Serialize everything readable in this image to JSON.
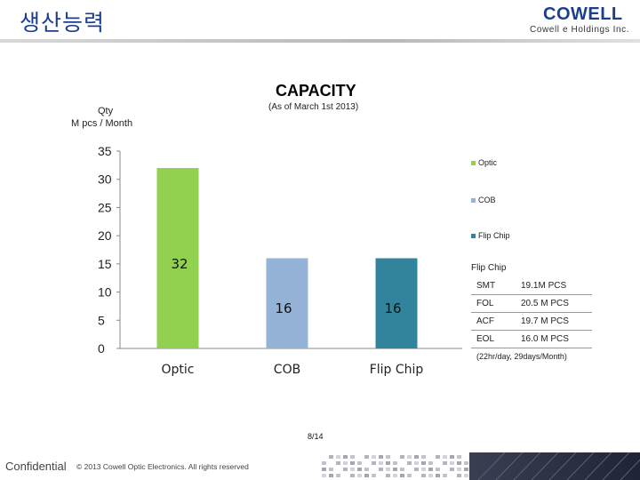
{
  "header": {
    "title": "생산능력",
    "logo_text": "COWELL",
    "company": "Cowell e Holdings Inc."
  },
  "chart_data": {
    "type": "bar",
    "title": "CAPACITY",
    "subtitle": "(As of March 1st 2013)",
    "ylabel_lines": [
      "Qty",
      "M pcs / Month"
    ],
    "categories": [
      "Optic",
      "COB",
      "Flip Chip"
    ],
    "values": [
      32,
      16,
      16
    ],
    "data_labels": [
      "32",
      "16",
      "16"
    ],
    "colors": [
      "#92d050",
      "#95b3d7",
      "#31849b"
    ],
    "ylim": [
      0,
      35
    ],
    "yticks": [
      "0",
      "5",
      "10",
      "15",
      "20",
      "25",
      "30",
      "35"
    ],
    "grid": false,
    "legend": [
      {
        "label": "Optic",
        "color": "#92d050"
      },
      {
        "label": "COB",
        "color": "#95b3d7"
      },
      {
        "label": "Flip Chip",
        "color": "#31849b"
      }
    ],
    "legend_position": "right"
  },
  "spec": {
    "header": "Flip Chip",
    "rows": [
      {
        "k": "SMT",
        "v": "19.1M PCS"
      },
      {
        "k": "FOL",
        "v": "20.5 M PCS"
      },
      {
        "k": "ACF",
        "v": "19.7 M PCS"
      },
      {
        "k": "EOL",
        "v": "16.0 M PCS"
      }
    ],
    "note": "(22hr/day, 29days/Month)"
  },
  "page": "8/14",
  "footer": {
    "confidential": "Confidential",
    "copyright": "© 2013 Cowell Optic Electronics. All rights reserved"
  }
}
